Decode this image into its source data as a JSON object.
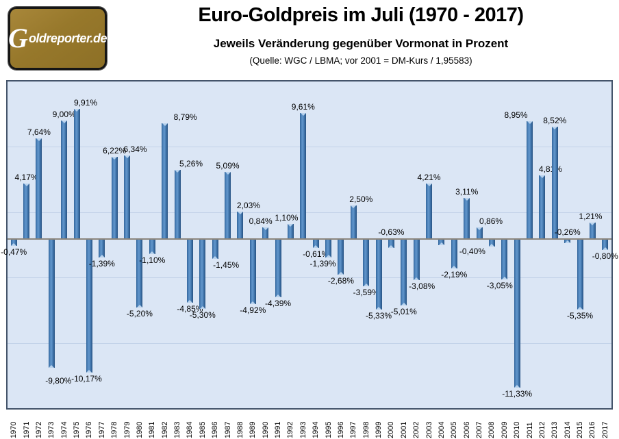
{
  "header": {
    "logo_text_g": "G",
    "logo_text_rest": "oldreporter.de",
    "title": "Euro-Goldpreis im Juli (1970 - 2017)",
    "subtitle": "Jeweils Veränderung gegenüber Vormonat in Prozent",
    "source": "(Quelle: WGC / LBMA; vor 2001 = DM-Kurs / 1,95583)"
  },
  "colors": {
    "bar_main": "#3f76ae",
    "bar_light": "#6397cc",
    "bar_dark": "#275180",
    "bar_notch": "#b9d3ee",
    "plot_background": "#dbe6f5",
    "gridline": "#c2d2e8",
    "axis_line": "#8b857c",
    "plot_border": "#44546a",
    "logo_background": "#97782b",
    "logo_text_color": "#ffffff",
    "page_background": "#ffffff"
  },
  "chart_data": {
    "type": "bar",
    "title": "Euro-Goldpreis im Juli (1970 - 2017)",
    "subtitle": "Jeweils Veränderung gegenüber Vormonat in Prozent",
    "source": "(Quelle: WGC / LBMA; vor 2001 = DM-Kurs / 1,95583)",
    "xlabel": "",
    "ylabel": "",
    "unit": "%",
    "decimal_separator": ",",
    "ylim": [
      -13,
      12
    ],
    "gridline_values": [
      7,
      2,
      -3,
      -8
    ],
    "grid": "horizontal",
    "legend": "none",
    "x": [
      1970,
      1971,
      1972,
      1973,
      1974,
      1975,
      1976,
      1977,
      1978,
      1979,
      1980,
      1981,
      1982,
      1983,
      1984,
      1985,
      1986,
      1987,
      1988,
      1989,
      1990,
      1991,
      1992,
      1993,
      1994,
      1995,
      1996,
      1997,
      1998,
      1999,
      2000,
      2001,
      2002,
      2003,
      2004,
      2005,
      2006,
      2007,
      2008,
      2009,
      2010,
      2011,
      2012,
      2013,
      2014,
      2015,
      2016,
      2017
    ],
    "values": [
      -0.47,
      4.17,
      7.64,
      -9.8,
      9.0,
      9.91,
      -10.17,
      -1.39,
      6.22,
      6.34,
      -5.2,
      -1.1,
      8.79,
      5.26,
      -4.85,
      -5.3,
      -1.45,
      5.09,
      2.03,
      -4.92,
      0.84,
      -4.39,
      1.1,
      9.61,
      -0.61,
      -1.39,
      -2.68,
      2.5,
      -3.59,
      -5.33,
      -0.63,
      -5.01,
      -3.08,
      4.21,
      -0.4,
      -2.19,
      3.11,
      0.86,
      -0.51,
      -3.05,
      -11.33,
      8.95,
      4.81,
      8.52,
      -0.26,
      -5.35,
      1.21,
      -0.8
    ],
    "labels": [
      "-0,47%",
      "4,17%",
      "7,64%",
      "-9,80%",
      "9,00%",
      "9,91%",
      "-10,17%",
      "-1,39%",
      "6,22%",
      "6,34%",
      "-5,20%",
      "-1,10%",
      "8,79%",
      "5,26%",
      "-4,85%",
      "-5,30%",
      "-1,45%",
      "5,09%",
      "2,03%",
      "-4,92%",
      "0,84%",
      "-4,39%",
      "1,10%",
      "9,61%",
      "-0,61%",
      "-1,39%",
      "-2,68%",
      "2,50%",
      "-3,59%",
      "-5,33%",
      "-0,63%",
      "-5,01%",
      "-3,08%",
      "4,21%",
      "-0,40%",
      "-2,19%",
      "3,11%",
      "0,86%",
      "",
      "-3,05%",
      "-11,33%",
      "8,95%",
      "4,81%",
      "8,52%",
      "-0,26%",
      "-5,35%",
      "1,21%",
      "-0,80%"
    ]
  }
}
